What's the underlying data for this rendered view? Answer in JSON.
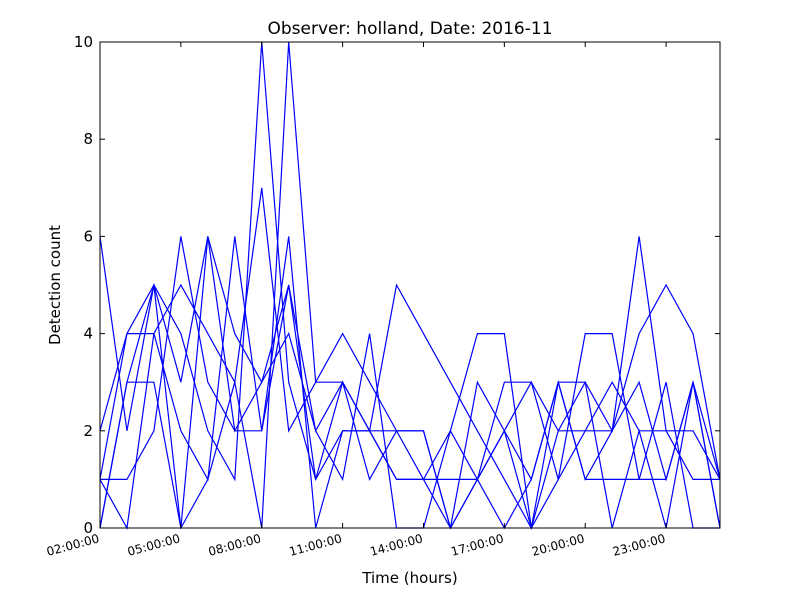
{
  "chart_data": {
    "type": "line",
    "title": "Observer: holland, Date: 2016-11",
    "xlabel": "Time (hours)",
    "ylabel": "Detection count",
    "x_unit": "hours",
    "xlim": [
      2,
      25
    ],
    "ylim": [
      0,
      10
    ],
    "xticks": [
      2,
      5,
      8,
      11,
      14,
      17,
      20,
      23
    ],
    "xtick_labels": [
      "02:00:00",
      "05:00:00",
      "08:00:00",
      "11:00:00",
      "14:00:00",
      "17:00:00",
      "20:00:00",
      "23:00:00"
    ],
    "yticks": [
      0,
      2,
      4,
      6,
      8,
      10
    ],
    "ytick_labels": [
      "0",
      "2",
      "4",
      "6",
      "8",
      "10"
    ],
    "grid": false,
    "line_color": "#0000ff",
    "x": [
      2,
      3,
      4,
      5,
      6,
      7,
      8,
      9,
      10,
      11,
      12,
      13,
      14,
      15,
      16,
      17,
      18,
      19,
      20,
      21,
      22,
      23,
      24,
      25
    ],
    "series": [
      {
        "values": [
          6,
          2,
          5,
          4,
          2,
          1,
          10,
          3,
          1,
          2,
          2,
          2,
          1,
          0,
          1,
          2,
          1,
          3,
          1,
          1,
          1,
          3,
          0,
          0
        ]
      },
      {
        "values": [
          1,
          4,
          4,
          2,
          1,
          6,
          2,
          5,
          1,
          3,
          1,
          2,
          2,
          0,
          1,
          2,
          0,
          3,
          1,
          2,
          3,
          1,
          3,
          1
        ]
      },
      {
        "values": [
          0,
          3,
          3,
          0,
          1,
          3,
          0,
          10,
          3,
          3,
          2,
          5,
          4,
          3,
          2,
          1,
          0,
          2,
          3,
          2,
          6,
          2,
          1,
          1
        ]
      },
      {
        "values": [
          2,
          4,
          5,
          3,
          6,
          2,
          3,
          4,
          2,
          3,
          2,
          1,
          1,
          2,
          4,
          4,
          0,
          1,
          4,
          4,
          1,
          1,
          3,
          0
        ]
      },
      {
        "values": [
          1,
          0,
          4,
          5,
          4,
          3,
          7,
          2,
          3,
          4,
          3,
          2,
          2,
          0,
          3,
          2,
          3,
          1,
          2,
          2,
          4,
          5,
          4,
          1
        ]
      },
      {
        "values": [
          1,
          1,
          2,
          6,
          3,
          2,
          2,
          6,
          0,
          2,
          2,
          1,
          1,
          1,
          1,
          3,
          3,
          2,
          2,
          3,
          2,
          2,
          2,
          1
        ]
      },
      {
        "values": [
          0,
          3,
          5,
          0,
          6,
          4,
          3,
          5,
          2,
          1,
          4,
          0,
          0,
          2,
          1,
          0,
          1,
          3,
          3,
          0,
          2,
          0,
          3,
          0
        ]
      }
    ]
  }
}
